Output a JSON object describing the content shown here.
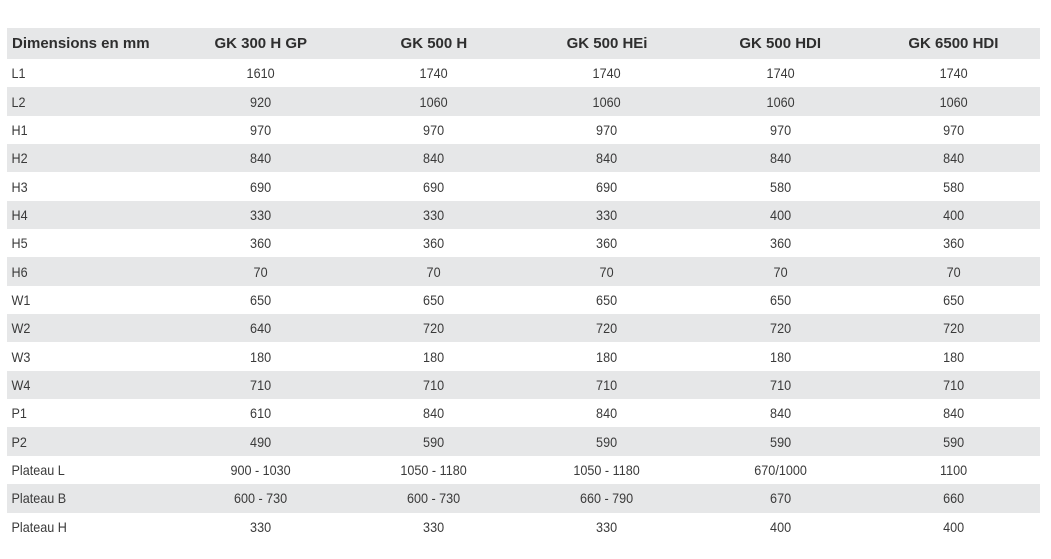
{
  "table": {
    "headers": [
      "Dimensions en mm",
      "GK 300 H GP",
      "GK 500 H",
      "GK 500 HEi",
      "GK 500 HDI",
      "GK 6500 HDI"
    ],
    "rows": [
      [
        "L1",
        "1610",
        "1740",
        "1740",
        "1740",
        "1740"
      ],
      [
        "L2",
        "920",
        "1060",
        "1060",
        "1060",
        "1060"
      ],
      [
        "H1",
        "970",
        "970",
        "970",
        "970",
        "970"
      ],
      [
        "H2",
        "840",
        "840",
        "840",
        "840",
        "840"
      ],
      [
        "H3",
        "690",
        "690",
        "690",
        "580",
        "580"
      ],
      [
        "H4",
        "330",
        "330",
        "330",
        "400",
        "400"
      ],
      [
        "H5",
        "360",
        "360",
        "360",
        "360",
        "360"
      ],
      [
        "H6",
        "70",
        "70",
        "70",
        "70",
        "70"
      ],
      [
        "W1",
        "650",
        "650",
        "650",
        "650",
        "650"
      ],
      [
        "W2",
        "640",
        "720",
        "720",
        "720",
        "720"
      ],
      [
        "W3",
        "180",
        "180",
        "180",
        "180",
        "180"
      ],
      [
        "W4",
        "710",
        "710",
        "710",
        "710",
        "710"
      ],
      [
        "P1",
        "610",
        "840",
        "840",
        "840",
        "840"
      ],
      [
        "P2",
        "490",
        "590",
        "590",
        "590",
        "590"
      ],
      [
        "Plateau L",
        "900 - 1030",
        "1050 - 1180",
        "1050 - 1180",
        "670/1000",
        "1100"
      ],
      [
        "Plateau B",
        "600 - 730",
        "600 - 730",
        "660 - 790",
        "670",
        "660"
      ],
      [
        "Plateau H",
        "330",
        "330",
        "330",
        "400",
        "400"
      ]
    ]
  },
  "colors": {
    "stripe": "#e6e7e8",
    "text": "#3a3a3a"
  }
}
